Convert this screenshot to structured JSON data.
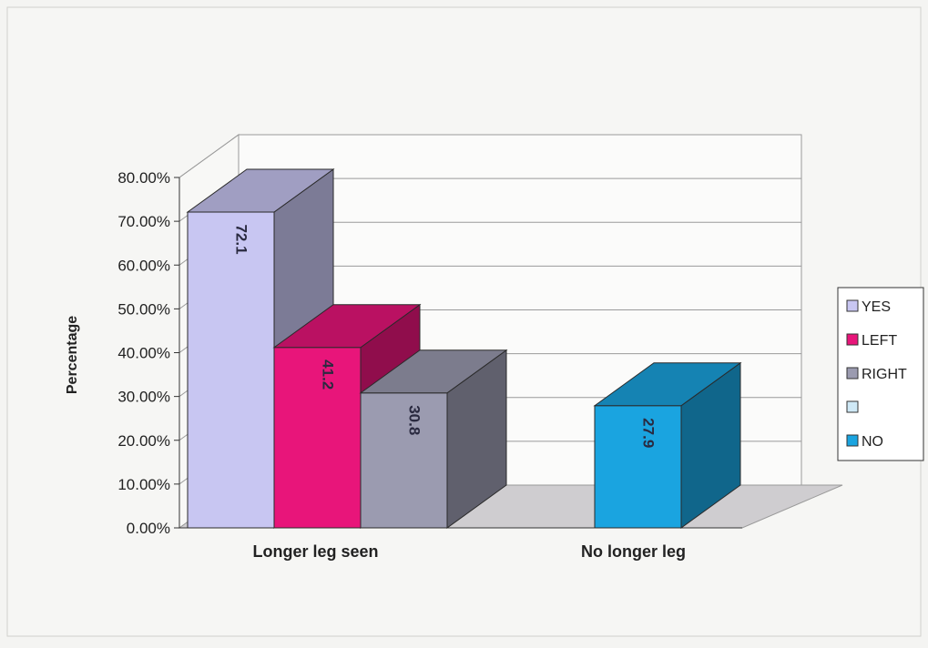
{
  "chart_data": {
    "type": "bar",
    "title": "",
    "xlabel": "",
    "ylabel": "Percentage",
    "ylim": [
      0,
      80
    ],
    "y_ticks": [
      "0.00%",
      "10.00%",
      "20.00%",
      "30.00%",
      "40.00%",
      "50.00%",
      "60.00%",
      "70.00%",
      "80.00%"
    ],
    "categories": [
      "Longer leg seen",
      "No longer leg"
    ],
    "grid": true,
    "legend_position": "right",
    "style": "3d-clustered-column",
    "series": [
      {
        "name": "YES",
        "color": "#c8c6f2",
        "values": [
          72.1,
          null
        ],
        "value_labels": [
          "72.1",
          ""
        ]
      },
      {
        "name": "LEFT",
        "color": "#e8157a",
        "values": [
          41.2,
          null
        ],
        "value_labels": [
          "41.2",
          ""
        ]
      },
      {
        "name": "RIGHT",
        "color": "#9b9bb0",
        "values": [
          30.8,
          null
        ],
        "value_labels": [
          "30.8",
          ""
        ]
      },
      {
        "name": "",
        "color": "#cfe9f6",
        "values": [
          null,
          null
        ],
        "value_labels": [
          "",
          ""
        ]
      },
      {
        "name": "NO",
        "color": "#1aa4e0",
        "values": [
          null,
          27.9
        ],
        "value_labels": [
          "",
          "27.9"
        ]
      }
    ]
  }
}
